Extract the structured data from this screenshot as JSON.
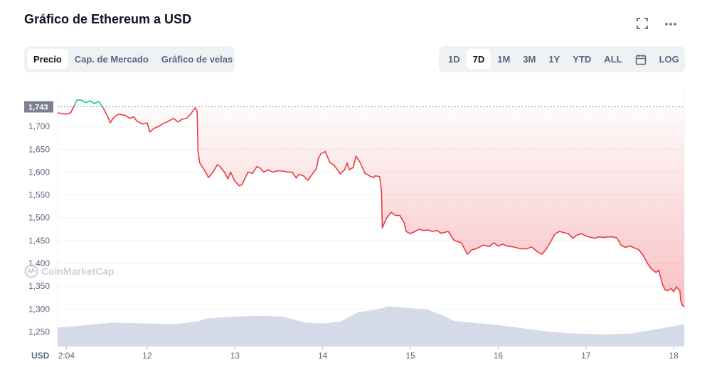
{
  "header": {
    "title": "Gráfico de Ethereum a USD",
    "fullscreen_icon": "fullscreen-icon",
    "more_icon": "more-icon"
  },
  "chart_tabs": [
    {
      "label": "Precio",
      "active": true
    },
    {
      "label": "Cap. de Mercado",
      "active": false
    },
    {
      "label": "Gráfico de velas",
      "active": false
    }
  ],
  "range_tabs": [
    {
      "label": "1D",
      "active": false
    },
    {
      "label": "7D",
      "active": true
    },
    {
      "label": "1M",
      "active": false
    },
    {
      "label": "3M",
      "active": false
    },
    {
      "label": "1Y",
      "active": false
    },
    {
      "label": "YTD",
      "active": false
    },
    {
      "label": "ALL",
      "active": false
    },
    {
      "label": "",
      "icon": "calendar-icon",
      "active": false
    },
    {
      "label": "LOG",
      "active": false
    }
  ],
  "watermark": "CoinMarketCap",
  "colors": {
    "down": "#ea3943",
    "up": "#16c784",
    "volume": "#cfd6e4",
    "reference": "#7b8191"
  },
  "chart_data": {
    "type": "line",
    "title": "",
    "xlabel": "",
    "ylabel": "",
    "y_unit_label": "USD",
    "ylim": [
      1218,
      1778
    ],
    "yticks": [
      1250,
      1300,
      1350,
      1400,
      1450,
      1500,
      1550,
      1600,
      1650,
      1700
    ],
    "x_ticks": [
      {
        "label": "2:04",
        "x": 11.08
      },
      {
        "label": "12",
        "x": 12
      },
      {
        "label": "13",
        "x": 13
      },
      {
        "label": "14",
        "x": 14
      },
      {
        "label": "15",
        "x": 15
      },
      {
        "label": "16",
        "x": 16
      },
      {
        "label": "17",
        "x": 17
      },
      {
        "label": "18",
        "x": 18
      }
    ],
    "xlim": [
      10.98,
      18.12
    ],
    "reference_price": 1743,
    "reference_label": "1,743",
    "grid": true,
    "series": [
      {
        "values": [
          [
            10.98,
            1730
          ],
          [
            11.03,
            1728
          ],
          [
            11.08,
            1727
          ],
          [
            11.13,
            1730
          ],
          [
            11.17,
            1746
          ],
          [
            11.2,
            1758
          ],
          [
            11.25,
            1758
          ],
          [
            11.3,
            1752
          ],
          [
            11.35,
            1756
          ],
          [
            11.4,
            1750
          ],
          [
            11.45,
            1755
          ],
          [
            11.5,
            1740
          ],
          [
            11.55,
            1722
          ],
          [
            11.58,
            1708
          ],
          [
            11.63,
            1722
          ],
          [
            11.68,
            1727
          ],
          [
            11.75,
            1724
          ],
          [
            11.8,
            1718
          ],
          [
            11.85,
            1721
          ],
          [
            11.88,
            1712
          ],
          [
            11.95,
            1705
          ],
          [
            12.0,
            1708
          ],
          [
            12.03,
            1688
          ],
          [
            12.08,
            1696
          ],
          [
            12.13,
            1700
          ],
          [
            12.18,
            1706
          ],
          [
            12.23,
            1710
          ],
          [
            12.3,
            1718
          ],
          [
            12.35,
            1710
          ],
          [
            12.4,
            1716
          ],
          [
            12.45,
            1718
          ],
          [
            12.5,
            1728
          ],
          [
            12.53,
            1737
          ],
          [
            12.55,
            1741
          ],
          [
            12.57,
            1733
          ],
          [
            12.58,
            1645
          ],
          [
            12.6,
            1620
          ],
          [
            12.65,
            1605
          ],
          [
            12.7,
            1588
          ],
          [
            12.75,
            1600
          ],
          [
            12.8,
            1616
          ],
          [
            12.83,
            1612
          ],
          [
            12.88,
            1600
          ],
          [
            12.92,
            1585
          ],
          [
            12.95,
            1600
          ],
          [
            13.0,
            1580
          ],
          [
            13.05,
            1570
          ],
          [
            13.08,
            1572
          ],
          [
            13.12,
            1588
          ],
          [
            13.15,
            1600
          ],
          [
            13.2,
            1597
          ],
          [
            13.25,
            1612
          ],
          [
            13.28,
            1610
          ],
          [
            13.33,
            1600
          ],
          [
            13.38,
            1605
          ],
          [
            13.43,
            1600
          ],
          [
            13.5,
            1603
          ],
          [
            13.55,
            1602
          ],
          [
            13.6,
            1600
          ],
          [
            13.65,
            1600
          ],
          [
            13.7,
            1587
          ],
          [
            13.73,
            1595
          ],
          [
            13.78,
            1592
          ],
          [
            13.83,
            1582
          ],
          [
            13.88,
            1595
          ],
          [
            13.93,
            1608
          ],
          [
            13.95,
            1630
          ],
          [
            13.98,
            1640
          ],
          [
            14.03,
            1645
          ],
          [
            14.08,
            1622
          ],
          [
            14.13,
            1615
          ],
          [
            14.18,
            1602
          ],
          [
            14.2,
            1596
          ],
          [
            14.25,
            1605
          ],
          [
            14.28,
            1620
          ],
          [
            14.3,
            1605
          ],
          [
            14.35,
            1610
          ],
          [
            14.38,
            1635
          ],
          [
            14.43,
            1620
          ],
          [
            14.48,
            1598
          ],
          [
            14.53,
            1592
          ],
          [
            14.58,
            1588
          ],
          [
            14.6,
            1592
          ],
          [
            14.65,
            1590
          ],
          [
            14.67,
            1560
          ],
          [
            14.68,
            1478
          ],
          [
            14.73,
            1500
          ],
          [
            14.78,
            1512
          ],
          [
            14.83,
            1505
          ],
          [
            14.88,
            1505
          ],
          [
            14.93,
            1488
          ],
          [
            14.95,
            1470
          ],
          [
            15.0,
            1465
          ],
          [
            15.05,
            1470
          ],
          [
            15.1,
            1475
          ],
          [
            15.15,
            1472
          ],
          [
            15.2,
            1473
          ],
          [
            15.25,
            1470
          ],
          [
            15.3,
            1472
          ],
          [
            15.35,
            1466
          ],
          [
            15.43,
            1470
          ],
          [
            15.5,
            1450
          ],
          [
            15.58,
            1445
          ],
          [
            15.65,
            1420
          ],
          [
            15.7,
            1430
          ],
          [
            15.75,
            1432
          ],
          [
            15.83,
            1440
          ],
          [
            15.9,
            1437
          ],
          [
            15.95,
            1445
          ],
          [
            16.0,
            1438
          ],
          [
            16.05,
            1442
          ],
          [
            16.1,
            1438
          ],
          [
            16.18,
            1436
          ],
          [
            16.25,
            1432
          ],
          [
            16.33,
            1432
          ],
          [
            16.38,
            1436
          ],
          [
            16.45,
            1425
          ],
          [
            16.5,
            1420
          ],
          [
            16.55,
            1432
          ],
          [
            16.6,
            1448
          ],
          [
            16.65,
            1465
          ],
          [
            16.7,
            1470
          ],
          [
            16.75,
            1467
          ],
          [
            16.8,
            1465
          ],
          [
            16.85,
            1455
          ],
          [
            16.9,
            1462
          ],
          [
            16.95,
            1465
          ],
          [
            17.0,
            1460
          ],
          [
            17.05,
            1457
          ],
          [
            17.1,
            1455
          ],
          [
            17.15,
            1458
          ],
          [
            17.2,
            1457
          ],
          [
            17.25,
            1458
          ],
          [
            17.3,
            1458
          ],
          [
            17.35,
            1456
          ],
          [
            17.4,
            1440
          ],
          [
            17.45,
            1435
          ],
          [
            17.5,
            1438
          ],
          [
            17.55,
            1434
          ],
          [
            17.6,
            1430
          ],
          [
            17.65,
            1418
          ],
          [
            17.7,
            1400
          ],
          [
            17.75,
            1387
          ],
          [
            17.8,
            1380
          ],
          [
            17.83,
            1385
          ],
          [
            17.87,
            1355
          ],
          [
            17.9,
            1342
          ],
          [
            17.93,
            1340
          ],
          [
            17.97,
            1345
          ],
          [
            18.0,
            1338
          ],
          [
            18.03,
            1348
          ],
          [
            18.07,
            1340
          ],
          [
            18.08,
            1318
          ],
          [
            18.1,
            1308
          ],
          [
            18.12,
            1305
          ]
        ]
      }
    ],
    "volume": {
      "values": [
        [
          10.98,
          0.22
        ],
        [
          11.3,
          0.25
        ],
        [
          11.6,
          0.28
        ],
        [
          12.0,
          0.27
        ],
        [
          12.3,
          0.26
        ],
        [
          12.55,
          0.29
        ],
        [
          12.7,
          0.33
        ],
        [
          13.0,
          0.35
        ],
        [
          13.3,
          0.36
        ],
        [
          13.55,
          0.35
        ],
        [
          13.8,
          0.28
        ],
        [
          14.0,
          0.27
        ],
        [
          14.2,
          0.29
        ],
        [
          14.4,
          0.4
        ],
        [
          14.6,
          0.43
        ],
        [
          14.75,
          0.47
        ],
        [
          15.0,
          0.45
        ],
        [
          15.2,
          0.43
        ],
        [
          15.35,
          0.37
        ],
        [
          15.5,
          0.3
        ],
        [
          15.8,
          0.27
        ],
        [
          16.0,
          0.25
        ],
        [
          16.3,
          0.21
        ],
        [
          16.6,
          0.17
        ],
        [
          16.9,
          0.15
        ],
        [
          17.2,
          0.14
        ],
        [
          17.5,
          0.15
        ],
        [
          17.8,
          0.2
        ],
        [
          18.12,
          0.26
        ]
      ]
    }
  }
}
